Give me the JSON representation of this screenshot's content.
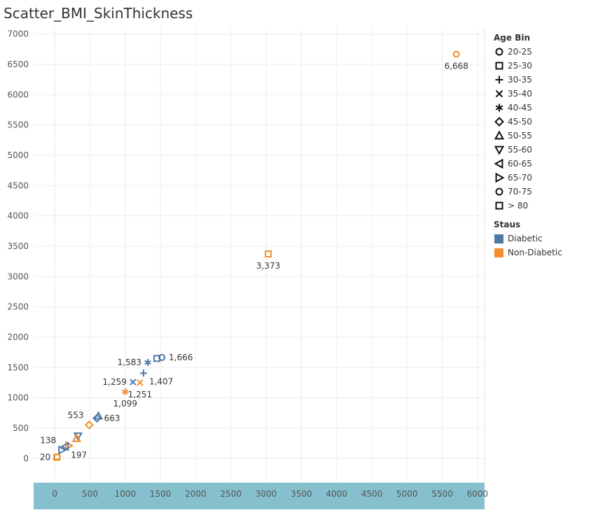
{
  "title": "Scatter_BMI_SkinThickness",
  "colors": {
    "diabetic": "#4e79a7",
    "non_diabetic": "#f28e2b",
    "x_axis_band": "#86c0ce",
    "grid": "#eeeeee"
  },
  "legend": {
    "age_title": "Age Bin",
    "age_bins": [
      {
        "label": "20-25",
        "shape": "circle"
      },
      {
        "label": "25-30",
        "shape": "square"
      },
      {
        "label": "30-35",
        "shape": "plus"
      },
      {
        "label": "35-40",
        "shape": "cross"
      },
      {
        "label": "40-45",
        "shape": "asterisk"
      },
      {
        "label": "45-50",
        "shape": "diamond"
      },
      {
        "label": "50-55",
        "shape": "triangle-up"
      },
      {
        "label": "55-60",
        "shape": "triangle-down"
      },
      {
        "label": "60-65",
        "shape": "triangle-left"
      },
      {
        "label": "65-70",
        "shape": "triangle-right"
      },
      {
        "label": "70-75",
        "shape": "circle"
      },
      {
        "label": "> 80",
        "shape": "square"
      }
    ],
    "status_title": "Staus",
    "status": [
      {
        "label": "Diabetic",
        "color": "#4e79a7"
      },
      {
        "label": "Non-Diabetic",
        "color": "#f28e2b"
      }
    ]
  },
  "chart_data": {
    "type": "scatter",
    "title": "Scatter_BMI_SkinThickness",
    "xlim": [
      -300,
      6100
    ],
    "ylim": [
      -400,
      7100
    ],
    "x_ticks": [
      0,
      500,
      1000,
      1500,
      2000,
      2500,
      3000,
      3500,
      4000,
      4500,
      5000,
      5500,
      6000
    ],
    "y_ticks": [
      0,
      500,
      1000,
      1500,
      2000,
      2500,
      3000,
      3500,
      4000,
      4500,
      5000,
      5500,
      6000,
      6500,
      7000
    ],
    "grid": true,
    "legend_position": "right",
    "points": [
      {
        "x": 5700,
        "y": 6668,
        "shape": "circle",
        "status": "Non-Diabetic",
        "label": "6,668",
        "label_pos": "below"
      },
      {
        "x": 3030,
        "y": 3373,
        "shape": "square",
        "status": "Non-Diabetic",
        "label": "3,373",
        "label_pos": "below"
      },
      {
        "x": 1520,
        "y": 1666,
        "shape": "circle",
        "status": "Diabetic",
        "label": "1,666",
        "label_pos": "right"
      },
      {
        "x": 1450,
        "y": 1650,
        "shape": "square",
        "status": "Diabetic",
        "label": "",
        "label_pos": ""
      },
      {
        "x": 1320,
        "y": 1583,
        "shape": "asterisk",
        "status": "Diabetic",
        "label": "1,583",
        "label_pos": "left"
      },
      {
        "x": 1260,
        "y": 1407,
        "shape": "plus",
        "status": "Diabetic",
        "label": "1,407",
        "label_pos": "right-below"
      },
      {
        "x": 1110,
        "y": 1259,
        "shape": "cross",
        "status": "Diabetic",
        "label": "1,259",
        "label_pos": "left"
      },
      {
        "x": 1210,
        "y": 1251,
        "shape": "cross",
        "status": "Non-Diabetic",
        "label": "1,251",
        "label_pos": "below"
      },
      {
        "x": 1000,
        "y": 1099,
        "shape": "asterisk",
        "status": "Non-Diabetic",
        "label": "1,099",
        "label_pos": "below"
      },
      {
        "x": 600,
        "y": 663,
        "shape": "diamond",
        "status": "Diabetic",
        "label": "663",
        "label_pos": "right"
      },
      {
        "x": 620,
        "y": 700,
        "shape": "triangle-up",
        "status": "Diabetic",
        "label": "",
        "label_pos": ""
      },
      {
        "x": 490,
        "y": 553,
        "shape": "diamond",
        "status": "Non-Diabetic",
        "label": "553",
        "label_pos": "left-above"
      },
      {
        "x": 330,
        "y": 370,
        "shape": "triangle-down",
        "status": "Diabetic",
        "label": "",
        "label_pos": ""
      },
      {
        "x": 310,
        "y": 330,
        "shape": "triangle-up",
        "status": "Non-Diabetic",
        "label": "",
        "label_pos": ""
      },
      {
        "x": 200,
        "y": 210,
        "shape": "triangle-right",
        "status": "Non-Diabetic",
        "label": "",
        "label_pos": ""
      },
      {
        "x": 150,
        "y": 197,
        "shape": "triangle-left",
        "status": "Diabetic",
        "label": "197",
        "label_pos": "right-below"
      },
      {
        "x": 100,
        "y": 138,
        "shape": "triangle-right",
        "status": "Diabetic",
        "label": "138",
        "label_pos": "left-above"
      },
      {
        "x": 30,
        "y": 20,
        "shape": "square",
        "status": "Non-Diabetic",
        "label": "20",
        "label_pos": "left"
      },
      {
        "x": 35,
        "y": 25,
        "shape": "circle",
        "status": "Non-Diabetic",
        "label": "",
        "label_pos": ""
      }
    ]
  }
}
